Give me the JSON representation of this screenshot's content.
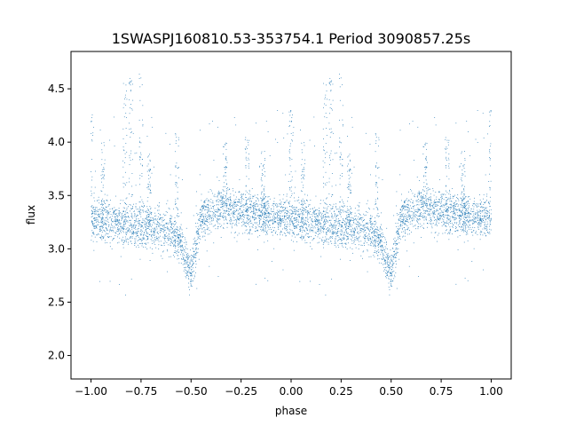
{
  "chart_data": {
    "type": "scatter",
    "title": "1SWASPJ160810.53-353754.1 Period 3090857.25s",
    "xlabel": "phase",
    "ylabel": "flux",
    "xlim": [
      -1.1,
      1.1
    ],
    "ylim": [
      1.78,
      4.85
    ],
    "x_ticks": [
      -1.0,
      -0.75,
      -0.5,
      -0.25,
      0.0,
      0.25,
      0.5,
      0.75,
      1.0
    ],
    "x_tick_labels": [
      "−1.00",
      "−0.75",
      "−0.50",
      "−0.25",
      "0.00",
      "0.25",
      "0.50",
      "0.75",
      "1.00"
    ],
    "y_ticks": [
      2.0,
      2.5,
      3.0,
      3.5,
      4.0,
      4.5
    ],
    "y_tick_labels": [
      "2.0",
      "2.5",
      "3.0",
      "3.5",
      "4.0",
      "4.5"
    ],
    "grid": false,
    "legend": "none",
    "marker_color": "#1f77b4",
    "points_per_cycle": 2600,
    "series": [
      {
        "phase_profile": [
          {
            "phase": 0.0,
            "flux": 3.28
          },
          {
            "phase": 0.1,
            "flux": 3.25
          },
          {
            "phase": 0.2,
            "flux": 3.22
          },
          {
            "phase": 0.3,
            "flux": 3.2
          },
          {
            "phase": 0.4,
            "flux": 3.18
          },
          {
            "phase": 0.45,
            "flux": 3.05
          },
          {
            "phase": 0.5,
            "flux": 2.75
          },
          {
            "phase": 0.55,
            "flux": 3.3
          },
          {
            "phase": 0.65,
            "flux": 3.38
          },
          {
            "phase": 0.75,
            "flux": 3.35
          },
          {
            "phase": 0.85,
            "flux": 3.32
          },
          {
            "phase": 0.95,
            "flux": 3.3
          },
          {
            "phase": 1.0,
            "flux": 3.28
          }
        ],
        "flares": [
          {
            "phase": 0.0,
            "flux": 4.1
          },
          {
            "phase": 0.06,
            "flux": 3.8
          },
          {
            "phase": 0.17,
            "flux": 4.45
          },
          {
            "phase": 0.2,
            "flux": 4.4
          },
          {
            "phase": 0.25,
            "flux": 4.45
          },
          {
            "phase": 0.29,
            "flux": 3.7
          },
          {
            "phase": 0.43,
            "flux": 3.9
          },
          {
            "phase": 0.67,
            "flux": 3.8
          },
          {
            "phase": 0.78,
            "flux": 3.85
          },
          {
            "phase": 0.86,
            "flux": 3.75
          }
        ]
      }
    ]
  }
}
